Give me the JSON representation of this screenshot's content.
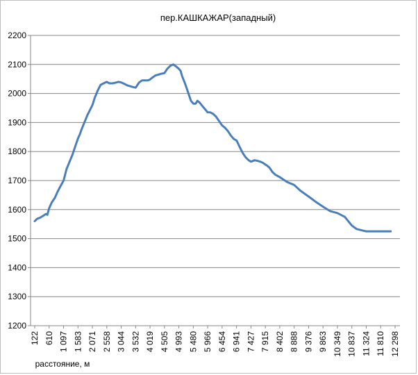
{
  "chart_data": {
    "type": "line",
    "title": "пер.КАШКАЖАР(западный)",
    "xlabel": "расстояние, м",
    "ylabel": "",
    "ylim": [
      1200,
      2200
    ],
    "yticks": [
      "1200",
      "1300",
      "1400",
      "1500",
      "1600",
      "1700",
      "1800",
      "1900",
      "2000",
      "2100",
      "2200"
    ],
    "xticks": [
      "122",
      "610",
      "1 097",
      "1 583",
      "2 071",
      "2 558",
      "3 044",
      "3 532",
      "4 019",
      "4 505",
      "4 993",
      "5 480",
      "5 966",
      "6 454",
      "6 941",
      "7 427",
      "7 915",
      "8 402",
      "8 888",
      "9 376",
      "9 863",
      "10 349",
      "10 837",
      "11 324",
      "11 810",
      "12 298"
    ],
    "grid": "horizontal",
    "line_color": "#4a7ebb",
    "series": [
      {
        "x": [
          122,
          200,
          300,
          400,
          500,
          550,
          610,
          700,
          800,
          900,
          1000,
          1097,
          1200,
          1300,
          1400,
          1500,
          1583,
          1650,
          1700,
          1800,
          1900,
          2000,
          2071,
          2150,
          2250,
          2350,
          2450,
          2558,
          2650,
          2750,
          2850,
          2950,
          3044,
          3150,
          3250,
          3350,
          3450,
          3532,
          3650,
          3750,
          3850,
          3950,
          4019,
          4060,
          4100,
          4200,
          4300,
          4400,
          4505,
          4600,
          4700,
          4800,
          4900,
          4993,
          5050,
          5100,
          5200,
          5300,
          5400,
          5480,
          5560,
          5620,
          5700,
          5800,
          5900,
          5966,
          6050,
          6150,
          6250,
          6350,
          6454,
          6550,
          6650,
          6750,
          6850,
          6941,
          7050,
          7150,
          7250,
          7350,
          7427,
          7550,
          7650,
          7750,
          7850,
          7915,
          7950,
          8050,
          8150,
          8250,
          8402,
          8500,
          8650,
          8888,
          9100,
          9376,
          9600,
          9863,
          10100,
          10349,
          10600,
          10837,
          11000,
          11200,
          11324,
          11450,
          11600,
          11810,
          12000,
          12150
        ],
        "values": [
          1560,
          1568,
          1572,
          1578,
          1585,
          1582,
          1605,
          1625,
          1640,
          1663,
          1682,
          1700,
          1740,
          1765,
          1790,
          1820,
          1845,
          1860,
          1875,
          1900,
          1925,
          1945,
          1960,
          1985,
          2010,
          2030,
          2035,
          2040,
          2035,
          2035,
          2037,
          2040,
          2038,
          2033,
          2028,
          2025,
          2022,
          2020,
          2038,
          2045,
          2045,
          2045,
          2048,
          2052,
          2055,
          2062,
          2065,
          2068,
          2070,
          2085,
          2095,
          2100,
          2093,
          2085,
          2078,
          2060,
          2035,
          2005,
          1975,
          1965,
          1965,
          1975,
          1968,
          1955,
          1943,
          1935,
          1935,
          1930,
          1920,
          1905,
          1890,
          1882,
          1870,
          1855,
          1843,
          1838,
          1815,
          1795,
          1780,
          1770,
          1765,
          1770,
          1768,
          1765,
          1760,
          1755,
          1753,
          1745,
          1730,
          1720,
          1712,
          1705,
          1695,
          1685,
          1665,
          1645,
          1628,
          1610,
          1595,
          1588,
          1575,
          1545,
          1533,
          1528,
          1525,
          1525,
          1525,
          1525,
          1525,
          1525
        ]
      }
    ]
  }
}
